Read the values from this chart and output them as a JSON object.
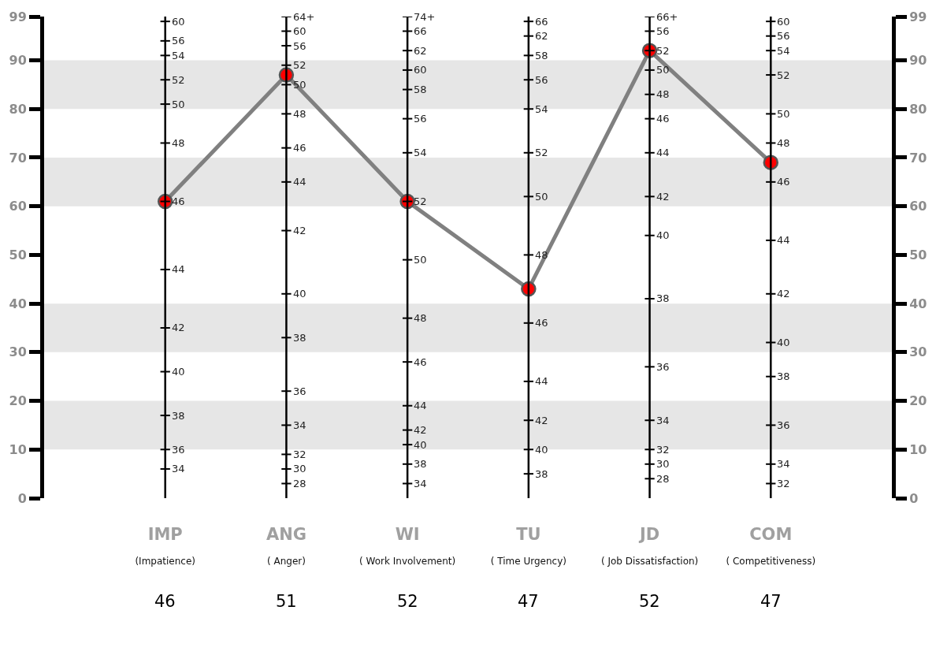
{
  "chart_data": {
    "type": "line",
    "categories": [
      "IMP\n(Impatience)",
      "ANG\n( Anger)",
      "WI\n( Work Involvement)",
      "TU\n( Time Urgency)",
      "JD\n( Job Dissatisfaction)",
      "COM\n( Competitiveness)"
    ],
    "series": [
      {
        "color": "#808080",
        "colors": [
          "#ff0000",
          "#ff0000",
          "#ff0000",
          "#ff0000",
          "#ff0000",
          "#ff0000"
        ],
        "values": [
          61,
          87,
          61,
          43,
          92,
          69
        ]
      }
    ],
    "ref_lines": [
      {
        "axis": "x",
        "value": "IMP\n(Impatience)",
        "color": "#000000"
      },
      {
        "axis": "x",
        "value": "ANG\n( Anger)",
        "color": "#000000"
      },
      {
        "axis": "x",
        "value": "WI\n( Work Involvement)",
        "color": "#000000"
      },
      {
        "axis": "x",
        "value": "TU\n( Time Urgency)",
        "color": "#000000"
      },
      {
        "axis": "x",
        "value": "JD\n( Job Dissatisfaction)",
        "color": "#000000"
      },
      {
        "axis": "x",
        "value": "COM\n( Competitiveness)",
        "color": "#000000"
      }
    ],
    "marker": "circle",
    "line_style": "solid",
    "ylim": [
      0,
      99
    ],
    "yticks": [
      0,
      10,
      20,
      30,
      40,
      50,
      60,
      70,
      80,
      90,
      99
    ],
    "y2lim": [
      0,
      99
    ],
    "y2ticks": [
      0,
      10,
      20,
      30,
      40,
      50,
      60,
      70,
      80,
      90,
      99
    ],
    "bands": [
      {
        "axis": "y",
        "from": 10,
        "to": 20,
        "color": "#e6e6e6"
      },
      {
        "axis": "y",
        "from": 30,
        "to": 40,
        "color": "#e6e6e6"
      },
      {
        "axis": "y",
        "from": 60,
        "to": 70,
        "color": "#e6e6e6"
      },
      {
        "axis": "y",
        "from": 80,
        "to": 90,
        "color": "#e6e6e6"
      }
    ],
    "annotations": [
      "46",
      "51",
      "52",
      "47",
      "52",
      "47",
      {
        "text": "60",
        "x": "IMP\n(Impatience)",
        "y": 98
      },
      {
        "text": "56",
        "x": "IMP\n(Impatience)",
        "y": 94
      },
      {
        "text": "54",
        "x": "IMP\n(Impatience)",
        "y": 91
      },
      {
        "text": "52",
        "x": "IMP\n(Impatience)",
        "y": 86
      },
      {
        "text": "50",
        "x": "IMP\n(Impatience)",
        "y": 81
      },
      {
        "text": "48",
        "x": "IMP\n(Impatience)",
        "y": 73
      },
      {
        "text": "46",
        "x": "IMP\n(Impatience)",
        "y": 61
      },
      {
        "text": "44",
        "x": "IMP\n(Impatience)",
        "y": 47
      },
      {
        "text": "42",
        "x": "IMP\n(Impatience)",
        "y": 35
      },
      {
        "text": "40",
        "x": "IMP\n(Impatience)",
        "y": 26
      },
      {
        "text": "38",
        "x": "IMP\n(Impatience)",
        "y": 17
      },
      {
        "text": "36",
        "x": "IMP\n(Impatience)",
        "y": 10
      },
      {
        "text": "34",
        "x": "IMP\n(Impatience)",
        "y": 6
      },
      {
        "text": "64+",
        "x": "ANG\n( Anger)",
        "y": 99
      },
      {
        "text": "60",
        "x": "ANG\n( Anger)",
        "y": 96
      },
      {
        "text": "56",
        "x": "ANG\n( Anger)",
        "y": 93
      },
      {
        "text": "52",
        "x": "ANG\n( Anger)",
        "y": 89
      },
      {
        "text": "50",
        "x": "ANG\n( Anger)",
        "y": 85
      },
      {
        "text": "48",
        "x": "ANG\n( Anger)",
        "y": 79
      },
      {
        "text": "46",
        "x": "ANG\n( Anger)",
        "y": 72
      },
      {
        "text": "44",
        "x": "ANG\n( Anger)",
        "y": 65
      },
      {
        "text": "42",
        "x": "ANG\n( Anger)",
        "y": 55
      },
      {
        "text": "40",
        "x": "ANG\n( Anger)",
        "y": 42
      },
      {
        "text": "38",
        "x": "ANG\n( Anger)",
        "y": 33
      },
      {
        "text": "36",
        "x": "ANG\n( Anger)",
        "y": 22
      },
      {
        "text": "34",
        "x": "ANG\n( Anger)",
        "y": 15
      },
      {
        "text": "32",
        "x": "ANG\n( Anger)",
        "y": 9
      },
      {
        "text": "30",
        "x": "ANG\n( Anger)",
        "y": 6
      },
      {
        "text": "28",
        "x": "ANG\n( Anger)",
        "y": 3
      },
      {
        "text": "74+",
        "x": "WI\n( Work Involvement)",
        "y": 99
      },
      {
        "text": "66",
        "x": "WI\n( Work Involvement)",
        "y": 96
      },
      {
        "text": "62",
        "x": "WI\n( Work Involvement)",
        "y": 92
      },
      {
        "text": "60",
        "x": "WI\n( Work Involvement)",
        "y": 88
      },
      {
        "text": "58",
        "x": "WI\n( Work Involvement)",
        "y": 84
      },
      {
        "text": "56",
        "x": "WI\n( Work Involvement)",
        "y": 78
      },
      {
        "text": "54",
        "x": "WI\n( Work Involvement)",
        "y": 71
      },
      {
        "text": "52",
        "x": "WI\n( Work Involvement)",
        "y": 61
      },
      {
        "text": "50",
        "x": "WI\n( Work Involvement)",
        "y": 49
      },
      {
        "text": "48",
        "x": "WI\n( Work Involvement)",
        "y": 37
      },
      {
        "text": "46",
        "x": "WI\n( Work Involvement)",
        "y": 28
      },
      {
        "text": "44",
        "x": "WI\n( Work Involvement)",
        "y": 19
      },
      {
        "text": "42",
        "x": "WI\n( Work Involvement)",
        "y": 14
      },
      {
        "text": "40",
        "x": "WI\n( Work Involvement)",
        "y": 11
      },
      {
        "text": "38",
        "x": "WI\n( Work Involvement)",
        "y": 7
      },
      {
        "text": "34",
        "x": "WI\n( Work Involvement)",
        "y": 3
      },
      {
        "text": "66",
        "x": "TU\n( Time Urgency)",
        "y": 98
      },
      {
        "text": "62",
        "x": "TU\n( Time Urgency)",
        "y": 95
      },
      {
        "text": "58",
        "x": "TU\n( Time Urgency)",
        "y": 91
      },
      {
        "text": "56",
        "x": "TU\n( Time Urgency)",
        "y": 86
      },
      {
        "text": "54",
        "x": "TU\n( Time Urgency)",
        "y": 80
      },
      {
        "text": "52",
        "x": "TU\n( Time Urgency)",
        "y": 71
      },
      {
        "text": "50",
        "x": "TU\n( Time Urgency)",
        "y": 62
      },
      {
        "text": "48",
        "x": "TU\n( Time Urgency)",
        "y": 50
      },
      {
        "text": "46",
        "x": "TU\n( Time Urgency)",
        "y": 36
      },
      {
        "text": "44",
        "x": "TU\n( Time Urgency)",
        "y": 24
      },
      {
        "text": "42",
        "x": "TU\n( Time Urgency)",
        "y": 16
      },
      {
        "text": "40",
        "x": "TU\n( Time Urgency)",
        "y": 10
      },
      {
        "text": "38",
        "x": "TU\n( Time Urgency)",
        "y": 5
      },
      {
        "text": "66+",
        "x": "JD\n( Job Dissatisfaction)",
        "y": 99
      },
      {
        "text": "56",
        "x": "JD\n( Job Dissatisfaction)",
        "y": 96
      },
      {
        "text": "52",
        "x": "JD\n( Job Dissatisfaction)",
        "y": 92
      },
      {
        "text": "50",
        "x": "JD\n( Job Dissatisfaction)",
        "y": 88
      },
      {
        "text": "48",
        "x": "JD\n( Job Dissatisfaction)",
        "y": 83
      },
      {
        "text": "46",
        "x": "JD\n( Job Dissatisfaction)",
        "y": 78
      },
      {
        "text": "44",
        "x": "JD\n( Job Dissatisfaction)",
        "y": 71
      },
      {
        "text": "42",
        "x": "JD\n( Job Dissatisfaction)",
        "y": 62
      },
      {
        "text": "40",
        "x": "JD\n( Job Dissatisfaction)",
        "y": 54
      },
      {
        "text": "38",
        "x": "JD\n( Job Dissatisfaction)",
        "y": 41
      },
      {
        "text": "36",
        "x": "JD\n( Job Dissatisfaction)",
        "y": 27
      },
      {
        "text": "34",
        "x": "JD\n( Job Dissatisfaction)",
        "y": 16
      },
      {
        "text": "32",
        "x": "JD\n( Job Dissatisfaction)",
        "y": 10
      },
      {
        "text": "30",
        "x": "JD\n( Job Dissatisfaction)",
        "y": 7
      },
      {
        "text": "28",
        "x": "JD\n( Job Dissatisfaction)",
        "y": 4
      },
      {
        "text": "60",
        "x": "COM\n( Competitiveness)",
        "y": 98
      },
      {
        "text": "56",
        "x": "COM\n( Competitiveness)",
        "y": 95
      },
      {
        "text": "54",
        "x": "COM\n( Competitiveness)",
        "y": 92
      },
      {
        "text": "52",
        "x": "COM\n( Competitiveness)",
        "y": 87
      },
      {
        "text": "50",
        "x": "COM\n( Competitiveness)",
        "y": 79
      },
      {
        "text": "48",
        "x": "COM\n( Competitiveness)",
        "y": 73
      },
      {
        "text": "46",
        "x": "COM\n( Competitiveness)",
        "y": 65
      },
      {
        "text": "44",
        "x": "COM\n( Competitiveness)",
        "y": 53
      },
      {
        "text": "42",
        "x": "COM\n( Competitiveness)",
        "y": 42
      },
      {
        "text": "40",
        "x": "COM\n( Competitiveness)",
        "y": 32
      },
      {
        "text": "38",
        "x": "COM\n( Competitiveness)",
        "y": 25
      },
      {
        "text": "36",
        "x": "COM\n( Competitiveness)",
        "y": 15
      },
      {
        "text": "34",
        "x": "COM\n( Competitiveness)",
        "y": 7
      },
      {
        "text": "32",
        "x": "COM\n( Competitiveness)",
        "y": 3
      }
    ]
  }
}
